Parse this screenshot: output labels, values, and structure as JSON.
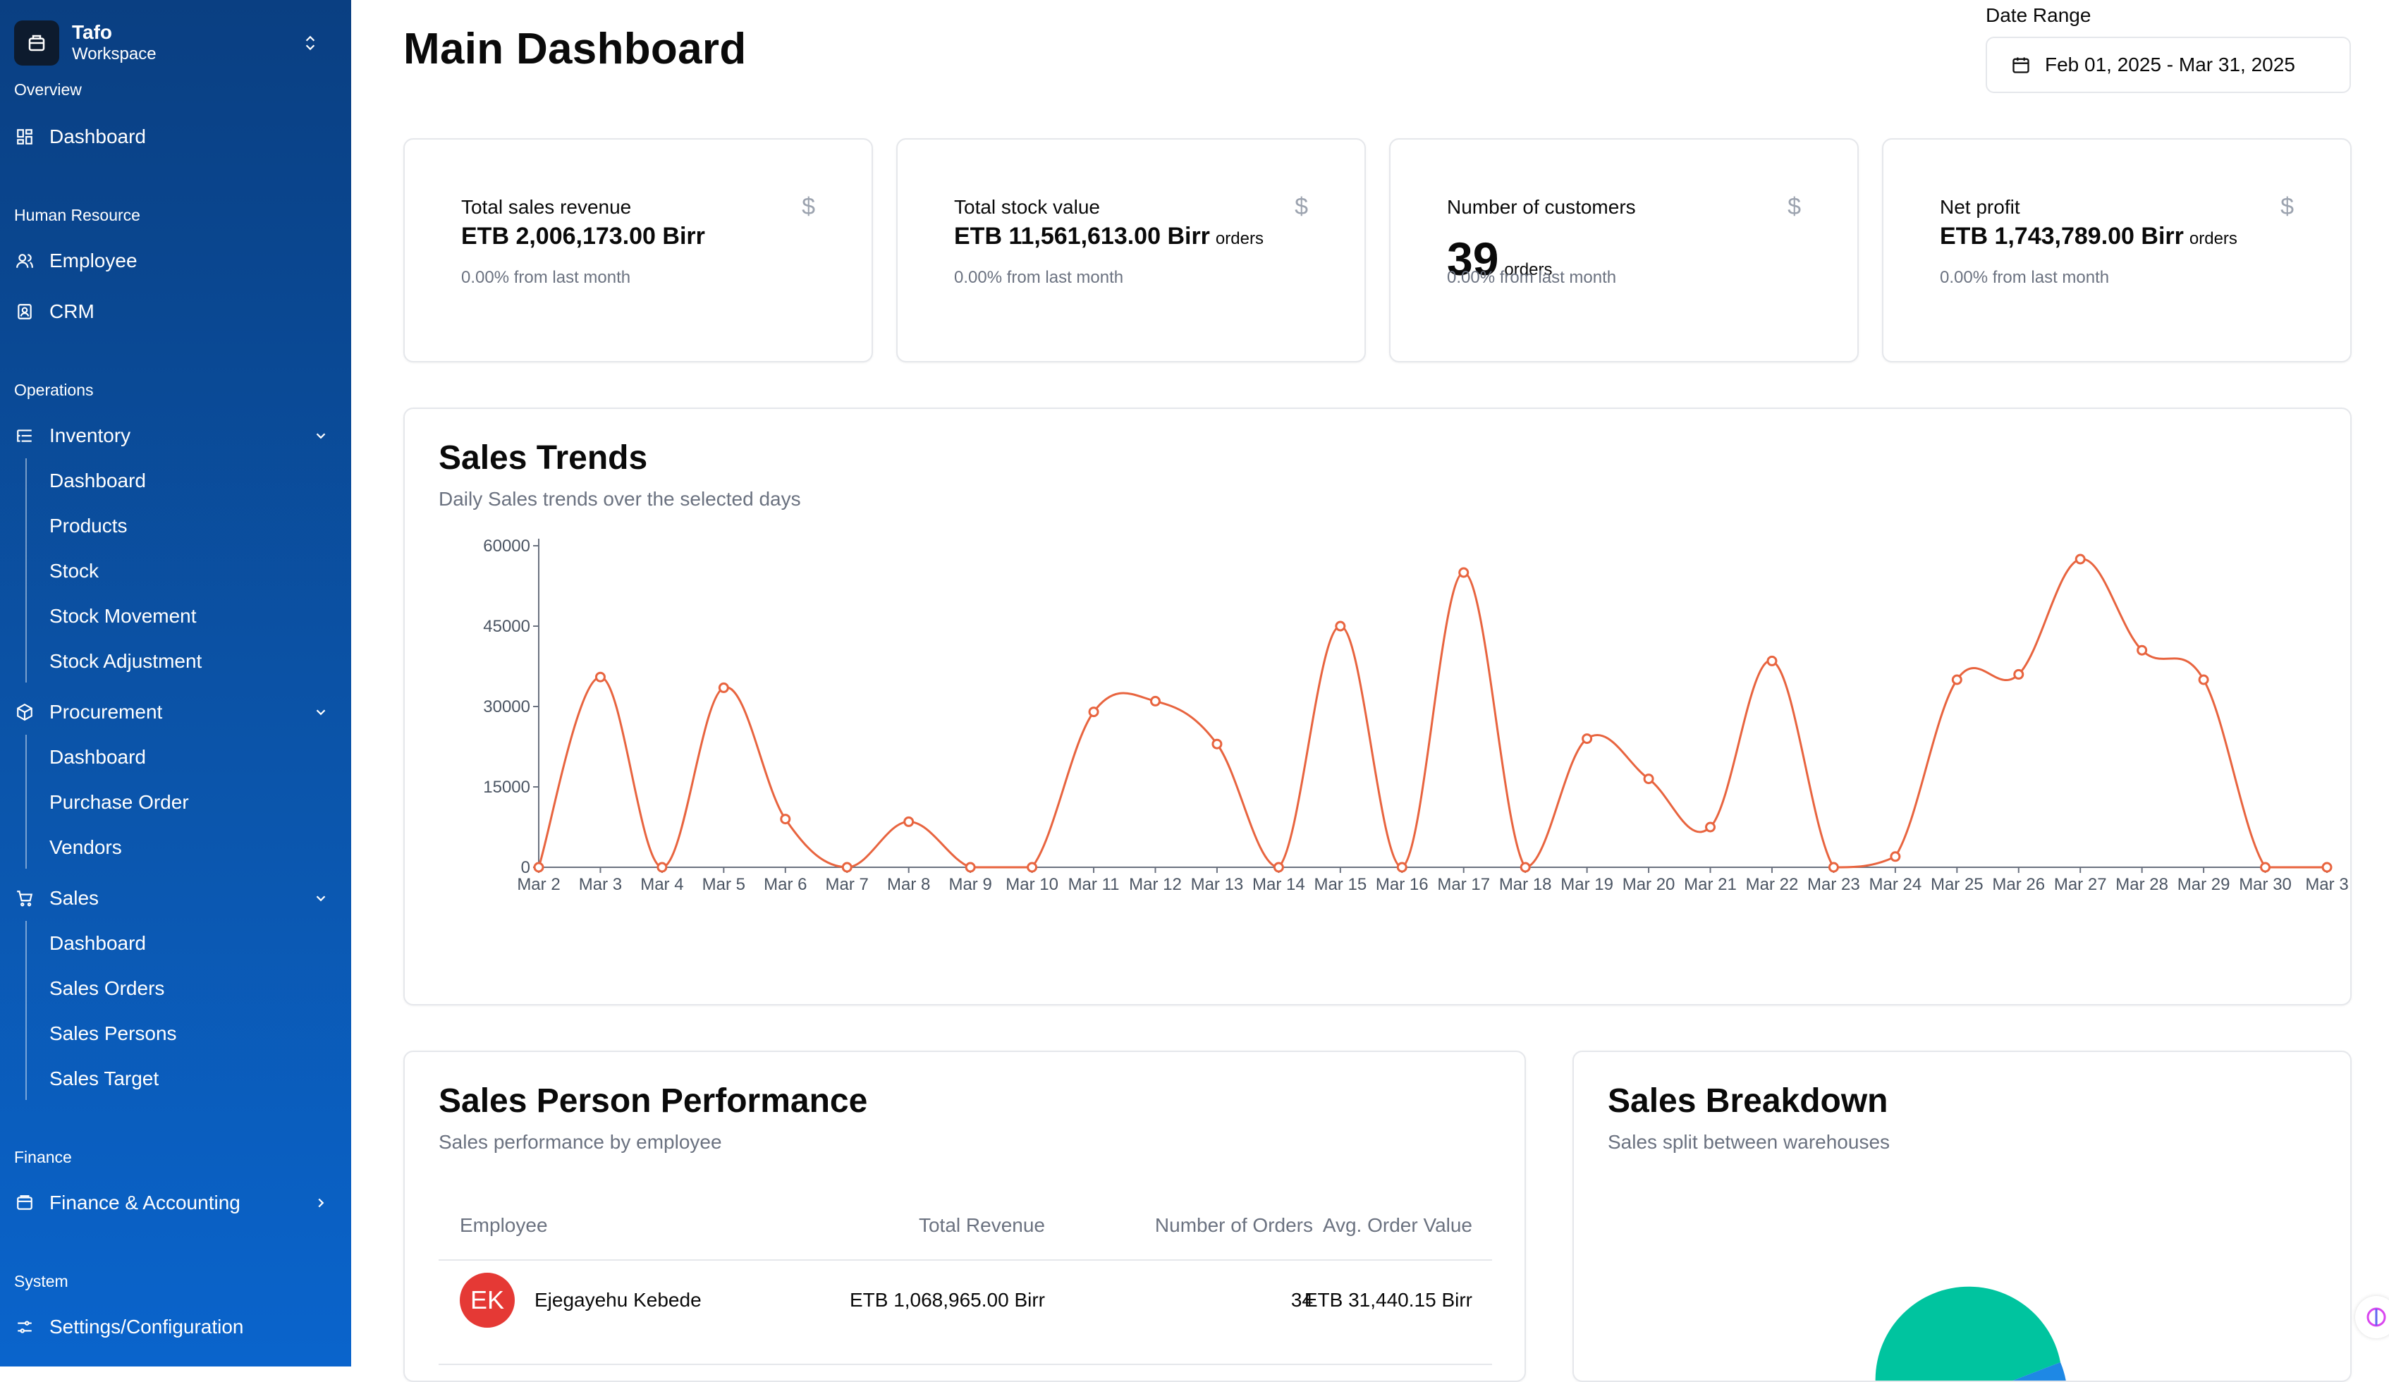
{
  "workspace": {
    "name": "Tafo",
    "subtitle": "Workspace"
  },
  "sidebar": {
    "overview_label": "Overview",
    "overview_items": [
      {
        "label": "Dashboard",
        "icon": "grid-icon"
      }
    ],
    "hr_label": "Human Resource",
    "hr_items": [
      {
        "label": "Employee",
        "icon": "users-icon"
      },
      {
        "label": "CRM",
        "icon": "contact-icon"
      }
    ],
    "operations_label": "Operations",
    "inventory": {
      "label": "Inventory",
      "items": [
        "Dashboard",
        "Products",
        "Stock",
        "Stock Movement",
        "Stock Adjustment"
      ]
    },
    "procurement": {
      "label": "Procurement",
      "items": [
        "Dashboard",
        "Purchase Order",
        "Vendors"
      ]
    },
    "sales": {
      "label": "Sales",
      "items": [
        "Dashboard",
        "Sales Orders",
        "Sales Persons",
        "Sales Target"
      ]
    },
    "finance_label": "Finance",
    "finance_item": "Finance & Accounting",
    "system_label": "System",
    "settings_item": "Settings/Configuration"
  },
  "header": {
    "title": "Main Dashboard",
    "date_range_label": "Date Range",
    "date_range_value": "Feb 01, 2025 - Mar 31, 2025"
  },
  "stats": [
    {
      "title": "Total sales revenue",
      "value": "ETB 2,006,173.00 Birr",
      "unit": "",
      "sub": "0.00% from last month"
    },
    {
      "title": "Total stock value",
      "value": "ETB 11,561,613.00 Birr",
      "unit": "orders",
      "sub": "0.00% from last month"
    },
    {
      "title": "Number of customers",
      "value": "39",
      "unit": "orders",
      "sub": "0.00% from last month"
    },
    {
      "title": "Net profit",
      "value": "ETB 1,743,789.00 Birr",
      "unit": "orders",
      "sub": "0.00% from last month"
    }
  ],
  "stat_icon_glyph": "$",
  "sales_trends": {
    "title": "Sales Trends",
    "description": "Daily Sales trends over the selected days"
  },
  "chart_data": {
    "type": "line",
    "title": "Sales Trends",
    "categories": [
      "Mar 2",
      "Mar 3",
      "Mar 4",
      "Mar 5",
      "Mar 6",
      "Mar 7",
      "Mar 8",
      "Mar 9",
      "Mar 10",
      "Mar 11",
      "Mar 12",
      "Mar 13",
      "Mar 14",
      "Mar 15",
      "Mar 16",
      "Mar 17",
      "Mar 18",
      "Mar 19",
      "Mar 20",
      "Mar 21",
      "Mar 22",
      "Mar 23",
      "Mar 24",
      "Mar 25",
      "Mar 26",
      "Mar 27",
      "Mar 28",
      "Mar 29",
      "Mar 30",
      "Mar 3"
    ],
    "values": [
      0,
      35500,
      0,
      33500,
      9000,
      0,
      8500,
      0,
      0,
      29000,
      31000,
      23000,
      0,
      45000,
      0,
      55000,
      0,
      24000,
      16500,
      7500,
      38500,
      0,
      2000,
      35000,
      36000,
      57500,
      40500,
      35000,
      0,
      0
    ],
    "yticks": [
      0,
      15000,
      30000,
      45000,
      60000
    ],
    "ylim": [
      0,
      60000
    ],
    "color": "#e8643f"
  },
  "performance": {
    "title": "Sales Person Performance",
    "description": "Sales performance by employee",
    "columns": [
      "Employee",
      "Total Revenue",
      "Number of Orders",
      "Avg. Order Value"
    ],
    "rows": [
      {
        "initials": "EK",
        "name": "Ejegayehu Kebede",
        "revenue": "ETB 1,068,965.00 Birr",
        "orders": "34",
        "avg": "ETB 31,440.15 Birr"
      }
    ]
  },
  "breakdown": {
    "title": "Sales Breakdown",
    "description": "Sales split between warehouses",
    "colors": [
      "#00c49f",
      "#1e88e5"
    ]
  }
}
